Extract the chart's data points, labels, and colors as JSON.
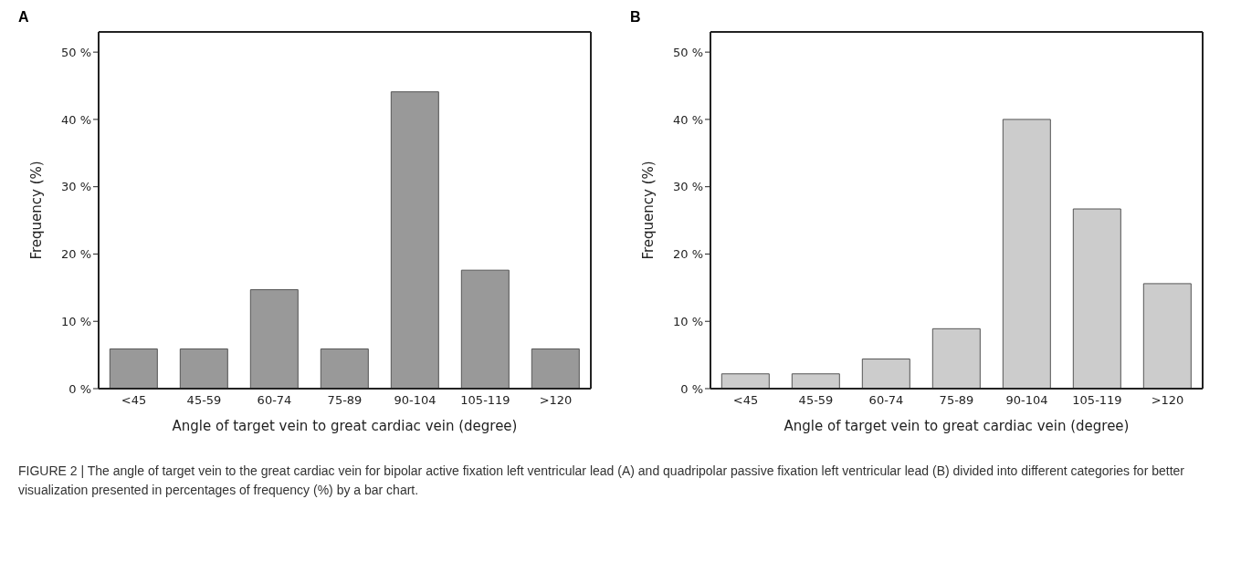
{
  "chart_data": [
    {
      "type": "bar",
      "title": "A",
      "xlabel": "Angle of target vein to great cardiac vein (degree)",
      "ylabel": "Frequency (%)",
      "categories": [
        "<45",
        "45-59",
        "60-74",
        "75-89",
        "90-104",
        "105-119",
        ">120"
      ],
      "values": [
        5.9,
        5.9,
        14.7,
        5.9,
        44.1,
        17.6,
        5.9
      ],
      "color": "#999999",
      "ylim": [
        0,
        53
      ],
      "yticks": [
        {
          "value": 0,
          "label": "0 %"
        },
        {
          "value": 10,
          "label": "10 %"
        },
        {
          "value": 20,
          "label": "20 %"
        },
        {
          "value": 30,
          "label": "30 %"
        },
        {
          "value": 40,
          "label": "40 %"
        },
        {
          "value": 50,
          "label": "50 %"
        }
      ],
      "grid": false,
      "legend": false,
      "annotations": [
        "FIGURE 2 | The angle of target vein to the great cardiac vein for bipolar active fixation left ventricular lead (A) and quadripolar passive fixation left ventricular lead (B) divided into different categories for better visualization presented in percentages of frequency (%) by a bar chart."
      ]
    },
    {
      "type": "bar",
      "title": "B",
      "xlabel": "Angle of target vein to great cardiac vein (degree)",
      "ylabel": "Frequency (%)",
      "categories": [
        "<45",
        "45-59",
        "60-74",
        "75-89",
        "90-104",
        "105-119",
        ">120"
      ],
      "values": [
        2.2,
        2.2,
        4.4,
        8.9,
        40.0,
        26.7,
        15.6
      ],
      "color": "#cccccc",
      "ylim": [
        0,
        53
      ],
      "yticks": [
        {
          "value": 0,
          "label": "0 %"
        },
        {
          "value": 10,
          "label": "10 %"
        },
        {
          "value": 20,
          "label": "20 %"
        },
        {
          "value": 30,
          "label": "30 %"
        },
        {
          "value": 40,
          "label": "40 %"
        },
        {
          "value": 50,
          "label": "50 %"
        }
      ],
      "grid": false,
      "legend": false
    }
  ]
}
